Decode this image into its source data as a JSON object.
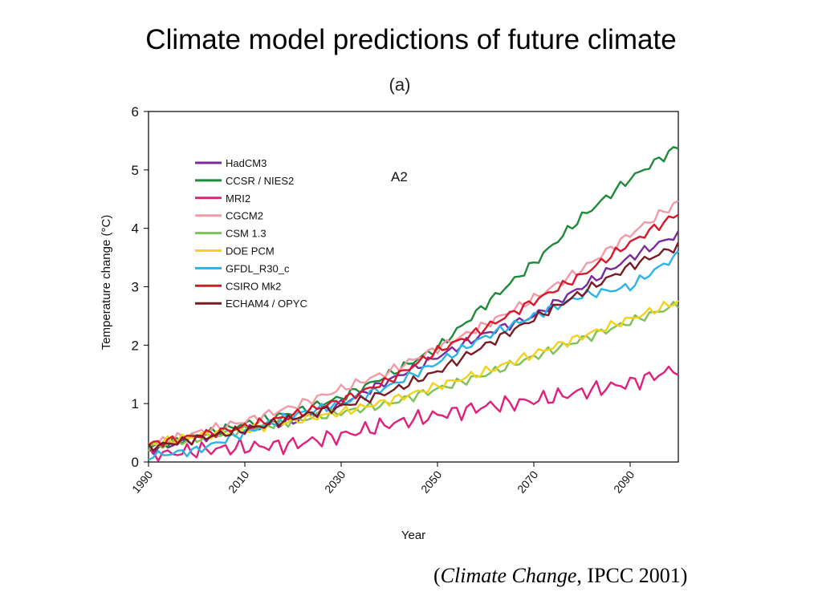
{
  "slide": {
    "title": "Climate model predictions of future climate",
    "citation": {
      "open": "(",
      "italic": "Climate Change",
      "rest": ", IPCC 2001)"
    }
  },
  "chart_data": {
    "type": "line",
    "panel_label": "(a)",
    "annotation": "A2",
    "title": "",
    "xlabel": "Year",
    "ylabel": "Temperature change (°C)",
    "xlim": [
      1990,
      2100
    ],
    "ylim": [
      0,
      6
    ],
    "xticks": [
      1990,
      2010,
      2030,
      2050,
      2070,
      2090
    ],
    "yticks": [
      0,
      1,
      2,
      3,
      4,
      5,
      6
    ],
    "grid": false,
    "legend_position": "top-left",
    "x": [
      1990,
      2000,
      2010,
      2020,
      2030,
      2040,
      2050,
      2060,
      2070,
      2080,
      2090,
      2100
    ],
    "series": [
      {
        "name": "HadCM3",
        "color": "#7b2a9e",
        "values": [
          0.2,
          0.4,
          0.55,
          0.7,
          1.0,
          1.4,
          1.8,
          2.2,
          2.5,
          3.0,
          3.5,
          3.9
        ]
      },
      {
        "name": "CCSR / NIES2",
        "color": "#1f8a3a",
        "values": [
          0.25,
          0.45,
          0.65,
          0.85,
          1.1,
          1.5,
          1.95,
          2.7,
          3.4,
          4.2,
          4.85,
          5.4
        ]
      },
      {
        "name": "MRI2",
        "color": "#e0207a",
        "values": [
          0.1,
          0.2,
          0.25,
          0.3,
          0.45,
          0.65,
          0.8,
          0.95,
          1.05,
          1.2,
          1.35,
          1.6
        ]
      },
      {
        "name": "CGCM2",
        "color": "#f29aa6",
        "values": [
          0.3,
          0.5,
          0.7,
          0.95,
          1.25,
          1.55,
          1.95,
          2.35,
          2.8,
          3.3,
          3.9,
          4.45
        ]
      },
      {
        "name": "CSM 1.3",
        "color": "#7cc257",
        "values": [
          0.25,
          0.4,
          0.55,
          0.7,
          0.85,
          1.0,
          1.25,
          1.5,
          1.8,
          2.1,
          2.4,
          2.7
        ]
      },
      {
        "name": "DOE PCM",
        "color": "#f2d21b",
        "values": [
          0.3,
          0.45,
          0.55,
          0.7,
          0.85,
          1.05,
          1.3,
          1.55,
          1.85,
          2.15,
          2.45,
          2.75
        ]
      },
      {
        "name": "GFDL_R30_c",
        "color": "#29b4e8",
        "values": [
          0.1,
          0.2,
          0.5,
          0.8,
          1.0,
          1.3,
          1.7,
          2.15,
          2.5,
          2.85,
          3.0,
          3.55
        ]
      },
      {
        "name": "CSIRO Mk2",
        "color": "#d8182a",
        "values": [
          0.3,
          0.45,
          0.6,
          0.8,
          1.05,
          1.4,
          1.9,
          2.3,
          2.75,
          3.2,
          3.75,
          4.25
        ]
      },
      {
        "name": "ECHAM4 / OPYC",
        "color": "#7a1a24",
        "values": [
          0.25,
          0.4,
          0.55,
          0.75,
          0.95,
          1.2,
          1.55,
          2.0,
          2.45,
          2.9,
          3.35,
          3.7
        ]
      }
    ]
  }
}
